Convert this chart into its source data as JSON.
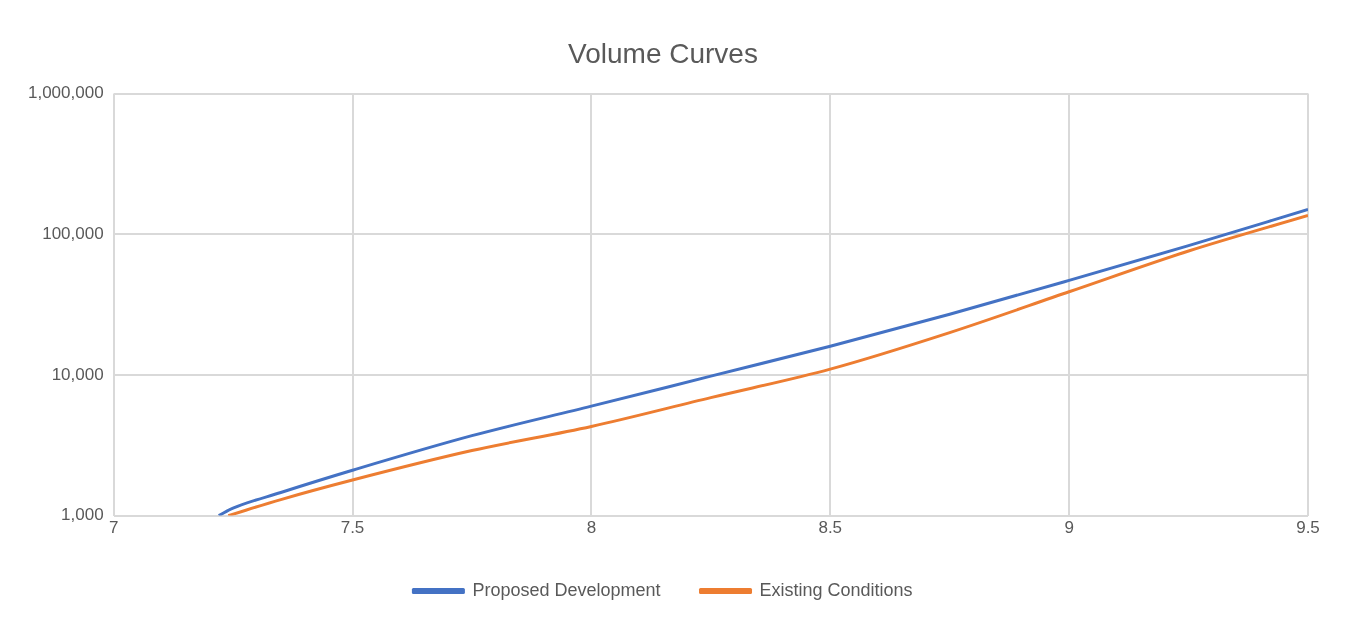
{
  "chart_data": {
    "type": "line",
    "title": "Volume Curves",
    "log": "y",
    "grid": true,
    "legend": "bottom",
    "marker": "none",
    "line_style": "solid",
    "xlim": [
      7,
      9.5
    ],
    "xticks": [
      7,
      7.5,
      8,
      8.5,
      9,
      9.5
    ],
    "ylim": [
      1000,
      1000000
    ],
    "yticks": [
      {
        "value": 1000,
        "label": "1,000"
      },
      {
        "value": 10000,
        "label": "10,000"
      },
      {
        "value": 100000,
        "label": "100,000"
      },
      {
        "value": 1000000,
        "label": "1,000,000"
      }
    ],
    "series": [
      {
        "name": "Proposed Development",
        "color": "#4472c4",
        "x": [
          7.22,
          7.25,
          7.35,
          7.5,
          7.75,
          8,
          8.25,
          8.5,
          8.75,
          9,
          9.25,
          9.5
        ],
        "values": [
          1000,
          1130,
          1460,
          2100,
          3700,
          6000,
          9800,
          16000,
          27000,
          47000,
          83000,
          150000
        ]
      },
      {
        "name": "Existing Conditions",
        "color": "#ed7d31",
        "x": [
          7.24,
          7.35,
          7.5,
          7.75,
          8,
          8.25,
          8.5,
          8.75,
          9,
          9.25,
          9.5
        ],
        "values": [
          1000,
          1300,
          1790,
          2900,
          4300,
          6900,
          11000,
          20000,
          39000,
          76000,
          136000
        ]
      }
    ]
  }
}
